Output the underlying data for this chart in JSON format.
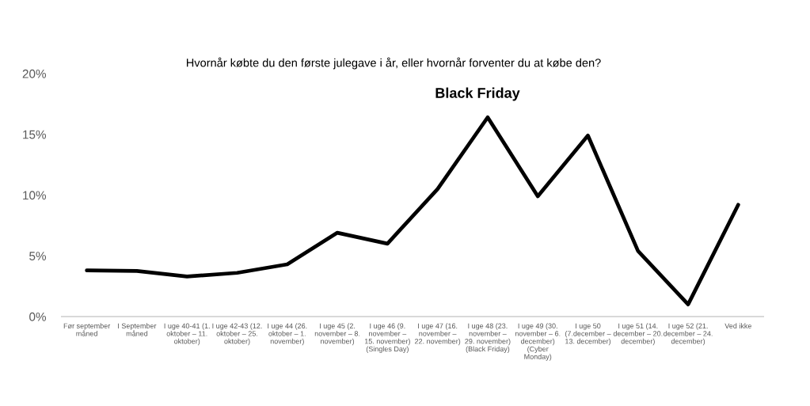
{
  "chart_data": {
    "type": "line",
    "title": "Hvornår købte du den første julegave i år, eller hvornår forventer du at købe den?",
    "categories": [
      "Før september\nmåned",
      "I September\nmåned",
      "I uge 40-41 (1.\noktober – 11.\noktober)",
      "I uge 42-43 (12.\noktober – 25.\noktober)",
      "I uge 44 (26.\noktober – 1.\nnovember)",
      "I uge 45 (2.\nnovember – 8.\nnovember)",
      "I uge 46 (9.\nnovember –\n15. november)\n(Singles Day)",
      "I uge 47 (16.\nnovember –\n22. november)",
      "I uge 48 (23.\nnovember –\n29. november)\n(Black Friday)",
      "I uge 49 (30.\nnovember – 6.\ndecember)\n(Cyber\nMonday)",
      "I uge 50\n(7.december –\n13. december)",
      "I uge 51 (14.\ndecember – 20.\ndecember)",
      "I uge 52 (21.\ndecember – 24.\ndecember)",
      "Ved ikke"
    ],
    "values": [
      3.8,
      3.75,
      3.3,
      3.6,
      4.3,
      6.9,
      6.0,
      10.5,
      16.4,
      9.9,
      14.9,
      5.4,
      1.0,
      9.2
    ],
    "color": "#000000",
    "ylim": [
      0,
      20
    ],
    "yticks": [
      {
        "value": 0,
        "label": "0%"
      },
      {
        "value": 5,
        "label": "5%"
      },
      {
        "value": 10,
        "label": "10%"
      },
      {
        "value": 15,
        "label": "15%"
      },
      {
        "value": 20,
        "label": "20%"
      }
    ],
    "grid": false,
    "marker": "none",
    "line_style": "solid",
    "legend": false,
    "annotations": [
      "Black Friday"
    ]
  }
}
